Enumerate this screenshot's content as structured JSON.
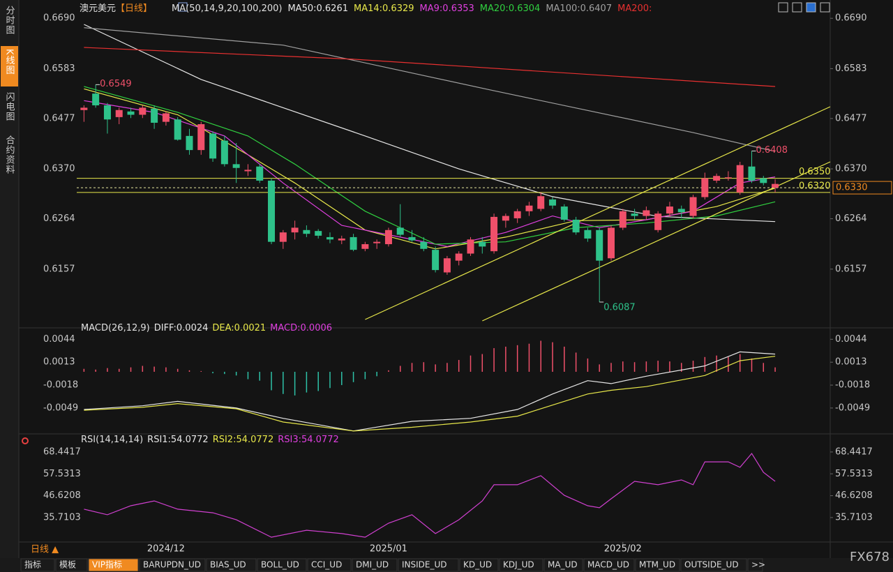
{
  "header": {
    "title": "澳元美元",
    "period": "【日线】",
    "indicator": "MA(50,14,9,20,100,200)"
  },
  "sidebar": [
    "分时图",
    "K线图",
    "闪电图",
    "合约资料"
  ],
  "sidebar_active": 1,
  "period_label": "日线 ▲",
  "bottom_tabs": [
    "指标",
    "模板",
    "VIP指标",
    "BARUPDN_UD",
    "BIAS_UD",
    "BOLL_UD",
    "CCI_UD",
    "DMI_UD",
    "INSIDE_UD",
    "KD_UD",
    "KDJ_UD",
    "MA_UD",
    "MACD_UD",
    "MTM_UD",
    "OUTSIDE_UD",
    ">>"
  ],
  "bottom_tab_active": 2,
  "watermark": "FX678",
  "date_axis": [
    {
      "value": 7,
      "label": "2024/12"
    },
    {
      "value": 26,
      "label": "2025/01"
    },
    {
      "value": 46,
      "label": "2025/02"
    }
  ],
  "chart_data": [
    {
      "type": "candlestick",
      "xlim": [
        -5.5,
        63.7
      ],
      "ylim": [
        0.6047,
        0.6717
      ],
      "yticks": [
        {
          "value": 0.669,
          "label": "0.6690"
        },
        0.6583,
        0.6477,
        {
          "value": 0.637,
          "label": "0.6370"
        },
        0.6264,
        0.6157
      ],
      "up_color": "#f0506a",
      "down_color": "#2ec28a",
      "candles": [
        [
          0.6495,
          0.6505,
          0.647,
          0.65
        ],
        [
          0.653,
          0.6549,
          0.65,
          0.6505
        ],
        [
          0.6505,
          0.651,
          0.6445,
          0.6475
        ],
        [
          0.648,
          0.65,
          0.6465,
          0.6495
        ],
        [
          0.6492,
          0.65,
          0.6478,
          0.6485
        ],
        [
          0.6485,
          0.6505,
          0.6478,
          0.65
        ],
        [
          0.6498,
          0.6505,
          0.6455,
          0.6468
        ],
        [
          0.647,
          0.6492,
          0.6462,
          0.6488
        ],
        [
          0.6475,
          0.648,
          0.643,
          0.6432
        ],
        [
          0.644,
          0.6455,
          0.64,
          0.641
        ],
        [
          0.641,
          0.647,
          0.64,
          0.6465
        ],
        [
          0.6445,
          0.645,
          0.6385,
          0.6392
        ],
        [
          0.643,
          0.644,
          0.6375,
          0.638
        ],
        [
          0.638,
          0.6425,
          0.634,
          0.6372
        ],
        [
          0.6365,
          0.638,
          0.6355,
          0.6368
        ],
        [
          0.6375,
          0.638,
          0.634,
          0.6345
        ],
        [
          0.6345,
          0.635,
          0.621,
          0.6215
        ],
        [
          0.6215,
          0.624,
          0.62,
          0.6235
        ],
        [
          0.6235,
          0.626,
          0.622,
          0.6245
        ],
        [
          0.624,
          0.625,
          0.6225,
          0.6232
        ],
        [
          0.6238,
          0.6242,
          0.6222,
          0.6228
        ],
        [
          0.6225,
          0.6235,
          0.6212,
          0.622
        ],
        [
          0.6218,
          0.6228,
          0.621,
          0.6222
        ],
        [
          0.6225,
          0.6232,
          0.6195,
          0.6198
        ],
        [
          0.62,
          0.6215,
          0.6195,
          0.621
        ],
        [
          0.6212,
          0.622,
          0.62,
          0.6215
        ],
        [
          0.621,
          0.6245,
          0.6205,
          0.624
        ],
        [
          0.6245,
          0.6295,
          0.6225,
          0.623
        ],
        [
          0.6225,
          0.624,
          0.6215,
          0.6218
        ],
        [
          0.6215,
          0.6225,
          0.6195,
          0.62
        ],
        [
          0.6198,
          0.6205,
          0.615,
          0.6155
        ],
        [
          0.615,
          0.6185,
          0.6145,
          0.618
        ],
        [
          0.6175,
          0.6195,
          0.6165,
          0.619
        ],
        [
          0.619,
          0.6225,
          0.6185,
          0.622
        ],
        [
          0.6215,
          0.6225,
          0.619,
          0.6205
        ],
        [
          0.6195,
          0.6275,
          0.619,
          0.6268
        ],
        [
          0.626,
          0.6275,
          0.6245,
          0.627
        ],
        [
          0.6265,
          0.6285,
          0.6255,
          0.628
        ],
        [
          0.628,
          0.63,
          0.627,
          0.6292
        ],
        [
          0.6285,
          0.632,
          0.628,
          0.6312
        ],
        [
          0.6305,
          0.631,
          0.6285,
          0.6292
        ],
        [
          0.629,
          0.6295,
          0.6258,
          0.6262
        ],
        [
          0.6262,
          0.6268,
          0.623,
          0.6235
        ],
        [
          0.624,
          0.6245,
          0.6215,
          0.6222
        ],
        [
          0.624,
          0.6245,
          0.6087,
          0.6175
        ],
        [
          0.618,
          0.625,
          0.6175,
          0.6245
        ],
        [
          0.6245,
          0.6285,
          0.624,
          0.628
        ],
        [
          0.6275,
          0.6285,
          0.626,
          0.627
        ],
        [
          0.627,
          0.629,
          0.6262,
          0.6282
        ],
        [
          0.624,
          0.628,
          0.6235,
          0.6275
        ],
        [
          0.6275,
          0.63,
          0.6268,
          0.629
        ],
        [
          0.6285,
          0.6292,
          0.6265,
          0.6278
        ],
        [
          0.627,
          0.6315,
          0.6265,
          0.631
        ],
        [
          0.631,
          0.6362,
          0.6305,
          0.635
        ],
        [
          0.6345,
          0.636,
          0.634,
          0.6355
        ],
        [
          0.635,
          0.6365,
          0.6345,
          0.6352
        ],
        [
          0.632,
          0.6385,
          0.6315,
          0.6378
        ],
        [
          0.6375,
          0.6408,
          0.634,
          0.6345
        ],
        [
          0.635,
          0.6355,
          0.6335,
          0.634
        ],
        [
          0.633,
          0.6348,
          0.632,
          0.6338
        ]
      ],
      "ma": [
        {
          "name": "MA50:0.6261",
          "color": "#e8e8e8",
          "x": [
            0,
            10,
            24,
            32,
            40,
            49,
            59
          ],
          "values": [
            0.6677,
            0.656,
            0.644,
            0.637,
            0.6311,
            0.6269,
            0.6258
          ]
        },
        {
          "name": "MA14:0.6329",
          "color": "#e8e84a",
          "x": [
            0,
            8,
            14,
            18,
            24,
            30,
            36,
            42,
            48,
            54,
            59
          ],
          "values": [
            0.654,
            0.6485,
            0.64,
            0.634,
            0.624,
            0.62,
            0.6225,
            0.626,
            0.6262,
            0.629,
            0.6329
          ]
        },
        {
          "name": "MA9:0.6353",
          "color": "#e040e0",
          "x": [
            0,
            6,
            12,
            17,
            22,
            27,
            31,
            36,
            40,
            44,
            48,
            52,
            56,
            59
          ],
          "values": [
            0.6515,
            0.649,
            0.644,
            0.634,
            0.625,
            0.6225,
            0.6205,
            0.6235,
            0.627,
            0.6245,
            0.6262,
            0.628,
            0.634,
            0.6353
          ]
        },
        {
          "name": "MA20:0.6304",
          "color": "#30d040",
          "x": [
            0,
            8,
            14,
            18,
            24,
            30,
            36,
            42,
            48,
            54,
            59
          ],
          "values": [
            0.6545,
            0.649,
            0.644,
            0.638,
            0.628,
            0.621,
            0.6215,
            0.6245,
            0.6255,
            0.627,
            0.63
          ]
        },
        {
          "name": "MA100:0.6407",
          "color": "#a0a0a0",
          "x": [
            0,
            17,
            35,
            52,
            59
          ],
          "values": [
            0.667,
            0.6633,
            0.6536,
            0.6447,
            0.6407
          ]
        },
        {
          "name": "MA200:",
          "color": "#e83030",
          "x": [
            0,
            23,
            59
          ],
          "values": [
            0.6628,
            0.6603,
            0.6545
          ]
        }
      ],
      "trend_color": "#e8e84a",
      "trend_lines": [
        {
          "x": [
            24,
            63.7
          ],
          "values": [
            0.605,
            0.6502
          ]
        },
        {
          "x": [
            34,
            63.7
          ],
          "values": [
            0.6047,
            0.6385
          ]
        }
      ],
      "price_lines": [
        {
          "value": 0.635,
          "label": "0.6350",
          "style": "solid"
        },
        {
          "value": 0.632,
          "label": "0.6320",
          "style": "solid"
        },
        {
          "value": 0.633,
          "label": "0.6330",
          "style": "dashed"
        }
      ],
      "annotations": [
        {
          "x": 1,
          "value": 0.6549,
          "label": "0.6549",
          "color": "#f0506a"
        },
        {
          "x": 44,
          "value": 0.6087,
          "label": "0.6087",
          "color": "#2ec28a"
        },
        {
          "x": 57,
          "value": 0.6408,
          "label": "0.6408",
          "color": "#f0506a"
        }
      ]
    },
    {
      "type": "macd",
      "title": "MACD(26,12,9)",
      "legend": [
        {
          "text": "DIFF:0.0024",
          "color": "#e8e8e8"
        },
        {
          "text": "DEA:0.0021",
          "color": "#e8e84a"
        },
        {
          "text": "MACD:0.0006",
          "color": "#e040e0"
        }
      ],
      "xlim": [
        -5.5,
        63.7
      ],
      "ylim": [
        -0.0084,
        0.005
      ],
      "yticks": [
        0.0044,
        0.0013,
        -0.0018,
        -0.0049
      ],
      "up_color": "#f0506a",
      "down_color": "#2ec2a8",
      "histogram": [
        0.0004,
        0.0003,
        0.0005,
        0.0004,
        0.0006,
        0.0008,
        0.0007,
        0.0006,
        0.0004,
        0.0002,
        0.0001,
        -0.0002,
        -0.0003,
        -0.0005,
        -0.001,
        -0.0012,
        -0.0025,
        -0.003,
        -0.0032,
        -0.0028,
        -0.0026,
        -0.0022,
        -0.0018,
        -0.0014,
        -0.001,
        -0.0006,
        0.0002,
        0.0008,
        0.0012,
        0.0013,
        0.001,
        0.0012,
        0.0016,
        0.0022,
        0.0024,
        0.0032,
        0.0034,
        0.0036,
        0.0038,
        0.0042,
        0.004,
        0.0034,
        0.0026,
        0.0018,
        0.001,
        0.0012,
        0.0014,
        0.0013,
        0.0014,
        0.0015,
        0.0014,
        0.0012,
        0.0015,
        0.002,
        0.0022,
        0.002,
        0.0024,
        0.0018,
        0.0012,
        0.0006
      ],
      "series": [
        {
          "color": "#e8e8e8",
          "x": [
            0,
            5,
            8,
            13,
            17,
            23,
            28,
            33,
            37,
            40,
            43,
            45,
            48,
            53,
            56,
            59
          ],
          "values": [
            -0.0051,
            -0.0046,
            -0.004,
            -0.0049,
            -0.0063,
            -0.008,
            -0.0067,
            -0.0063,
            -0.0051,
            -0.003,
            -0.0012,
            -0.0016,
            -0.0006,
            0.0008,
            0.0027,
            0.0024
          ]
        },
        {
          "color": "#e8e84a",
          "x": [
            0,
            5,
            8,
            13,
            17,
            23,
            28,
            33,
            37,
            40,
            43,
            45,
            48,
            53,
            56,
            59
          ],
          "values": [
            -0.0052,
            -0.0048,
            -0.0043,
            -0.005,
            -0.0068,
            -0.008,
            -0.0075,
            -0.0068,
            -0.006,
            -0.0045,
            -0.003,
            -0.0025,
            -0.002,
            -0.0005,
            0.0015,
            0.0021
          ]
        }
      ]
    },
    {
      "type": "line",
      "title": "RSI(14,14,14)",
      "legend": [
        {
          "text": "RSI1:54.0772",
          "color": "#e8e8e8"
        },
        {
          "text": "RSI2:54.0772",
          "color": "#e8e84a"
        },
        {
          "text": "RSI3:54.0772",
          "color": "#e040e0"
        }
      ],
      "xlim": [
        -5.5,
        63.7
      ],
      "ylim": [
        24.2,
        71.2
      ],
      "yticks": [
        68.4417,
        57.5313,
        46.6208,
        35.7103
      ],
      "series": [
        {
          "color": "#d040d0",
          "x": [
            0,
            2,
            4,
            6,
            8,
            11,
            13,
            16,
            19,
            22,
            24,
            26,
            28,
            30,
            32,
            34,
            35,
            37,
            39,
            41,
            43,
            44,
            45,
            47,
            49,
            51,
            52,
            53,
            55,
            56,
            57,
            58,
            59
          ],
          "values": [
            39.9,
            37.1,
            41.6,
            44.0,
            39.9,
            38.1,
            34.6,
            25.9,
            29.4,
            27.7,
            25.9,
            32.9,
            37.1,
            27.7,
            34.6,
            44.0,
            52.1,
            52.1,
            56.6,
            46.8,
            41.6,
            40.6,
            45.1,
            53.8,
            52.1,
            54.5,
            52.1,
            63.5,
            63.5,
            60.8,
            67.7,
            58.3,
            53.8
          ]
        }
      ]
    }
  ]
}
